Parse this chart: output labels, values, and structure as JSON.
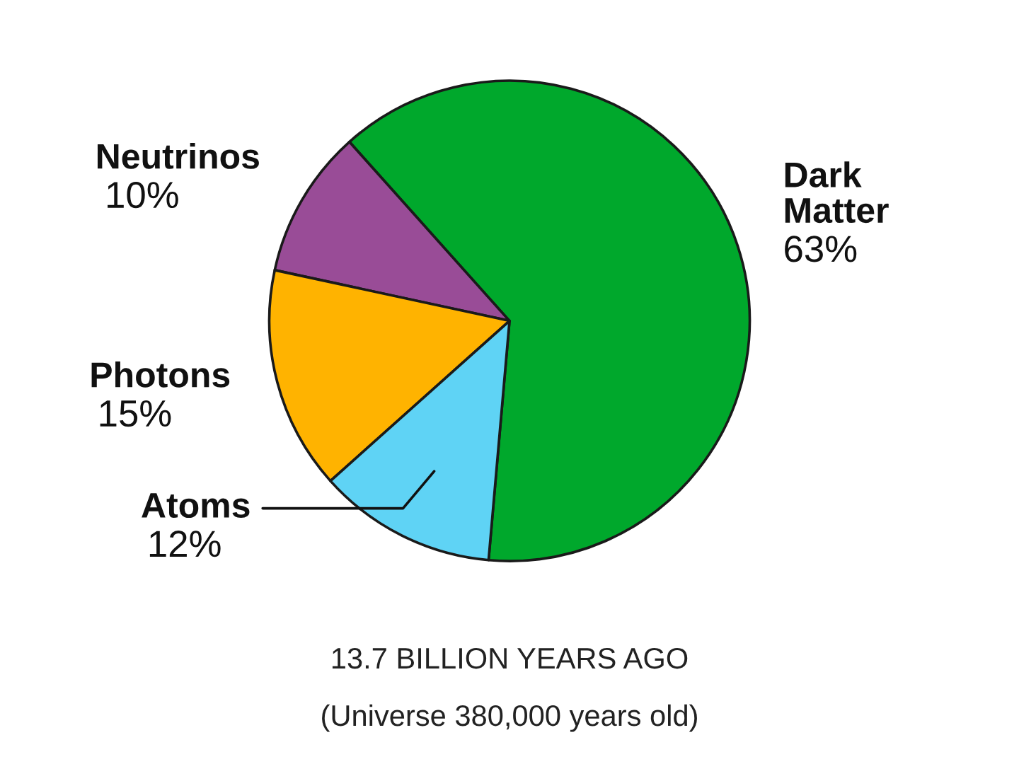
{
  "chart_data": {
    "type": "pie",
    "title": "13.7 BILLION YEARS AGO",
    "subtitle": "(Universe 380,000 years old)",
    "categories": [
      "Dark Matter",
      "Neutrinos",
      "Photons",
      "Atoms"
    ],
    "values": [
      63,
      10,
      15,
      12
    ],
    "value_labels": [
      "63%",
      "10%",
      "15%",
      "12%"
    ],
    "colors": [
      "#00a82c",
      "#994c97",
      "#ffb300",
      "#5fd3f5"
    ]
  }
}
